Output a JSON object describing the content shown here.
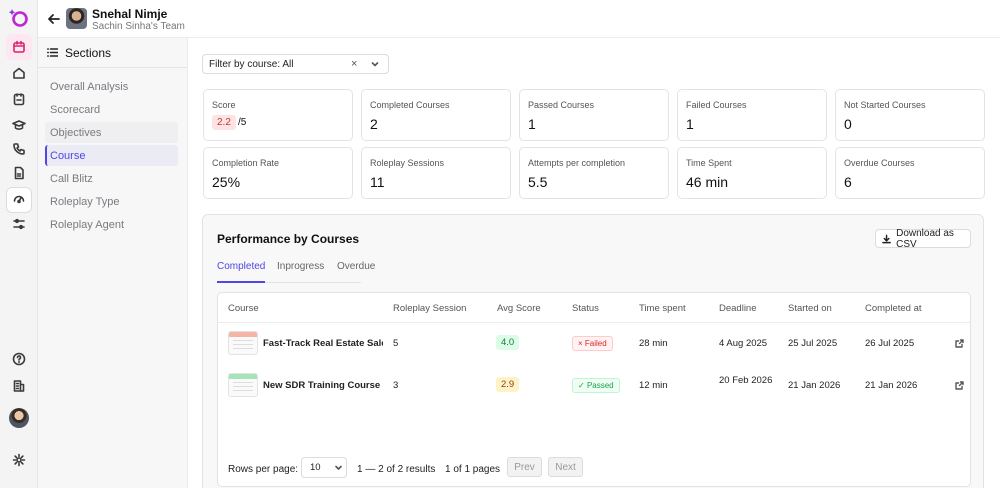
{
  "header": {
    "name": "Snehal Nimje",
    "team": "Sachin Sinha's Team"
  },
  "rail": {
    "icons": [
      "logo-icon",
      "calendar-icon",
      "home-icon",
      "clipboard-icon",
      "graduation-cap-icon",
      "phone-icon",
      "document-icon",
      "roleplay-icon",
      "sliders-icon",
      "help-icon",
      "building-icon",
      "user-avatar",
      "settings-icon"
    ]
  },
  "sections": {
    "title": "Sections",
    "items": [
      {
        "label": "Overall Analysis"
      },
      {
        "label": "Scorecard"
      },
      {
        "label": "Objectives"
      },
      {
        "label": "Course"
      },
      {
        "label": "Call Blitz"
      },
      {
        "label": "Roleplay Type"
      },
      {
        "label": "Roleplay Agent"
      }
    ],
    "active": "Course"
  },
  "filter": {
    "label": "Filter by course: All",
    "clear": "×"
  },
  "stats": [
    {
      "label": "Score",
      "value": "2.2",
      "suffix": "/5"
    },
    {
      "label": "Completed Courses",
      "value": "2"
    },
    {
      "label": "Passed Courses",
      "value": "1"
    },
    {
      "label": "Failed Courses",
      "value": "1"
    },
    {
      "label": "Not Started Courses",
      "value": "0"
    },
    {
      "label": "Completion Rate",
      "value": "25%"
    },
    {
      "label": "Roleplay Sessions",
      "value": "11"
    },
    {
      "label": "Attempts per completion",
      "value": "5.5"
    },
    {
      "label": "Time Spent",
      "value": "46 min"
    },
    {
      "label": "Overdue Courses",
      "value": "6"
    }
  ],
  "performance": {
    "title": "Performance by Courses",
    "download_label": "Download as CSV",
    "tabs": [
      {
        "label": "Completed"
      },
      {
        "label": "Inprogress"
      },
      {
        "label": "Overdue"
      }
    ],
    "active_tab": "Completed",
    "columns": [
      "Course",
      "Roleplay Session",
      "Avg Score",
      "Status",
      "Time spent",
      "Deadline",
      "Started on",
      "Completed at"
    ],
    "rows": [
      {
        "course": "Fast-Track Real Estate Sales Course",
        "sessions": "5",
        "avg_score": "4.0",
        "status": "Failed",
        "status_icon": "×",
        "time_spent": "28 min",
        "deadline": "4 Aug 2025",
        "started_on": "25 Jul 2025",
        "completed_at": "26 Jul 2025",
        "thumb_color": "#f5b5a4",
        "avg_bg": "#dcfce7",
        "avg_fg": "#15803d",
        "status_bg": "#fef2f2",
        "status_fg": "#dc2626",
        "status_border": "#fecaca"
      },
      {
        "course": "New SDR Training Course",
        "sessions": "3",
        "avg_score": "2.9",
        "status": "Passed",
        "status_icon": "✓",
        "time_spent": "12 min",
        "deadline": "20 Feb 2026",
        "started_on": "21 Jan 2026",
        "completed_at": "21 Jan 2026",
        "thumb_color": "#a7e3b9",
        "avg_bg": "#fef3c7",
        "avg_fg": "#92400e",
        "status_bg": "#f0fdf4",
        "status_fg": "#16a34a",
        "status_border": "#bbf7d0"
      }
    ],
    "pagination": {
      "rows_per_page_label": "Rows per page:",
      "rows_per_page": "10",
      "range": "1 — 2 of 2 results",
      "pages": "1 of 1 pages",
      "prev": "Prev",
      "next": "Next"
    }
  },
  "colors": {
    "accent": "#4f46e5",
    "logo": "#c026d3"
  }
}
